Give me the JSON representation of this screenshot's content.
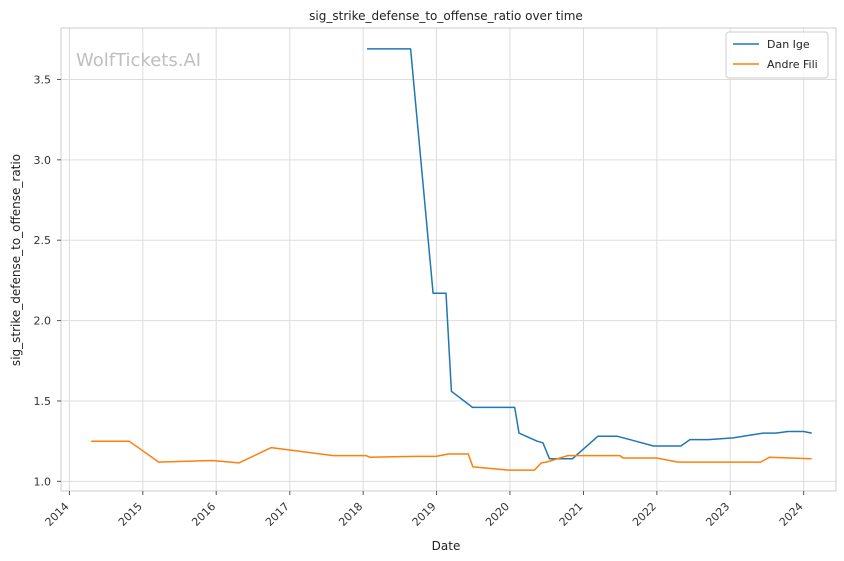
{
  "chart_data": {
    "type": "line",
    "title": "sig_strike_defense_to_offense_ratio over time",
    "xlabel": "Date",
    "ylabel": "sig_strike_defense_to_offense_ratio",
    "watermark": "WolfTickets.AI",
    "x_ticks": [
      "2014",
      "2015",
      "2016",
      "2017",
      "2018",
      "2019",
      "2020",
      "2021",
      "2022",
      "2023",
      "2024"
    ],
    "y_ticks": [
      "1.0",
      "1.5",
      "2.0",
      "2.5",
      "3.0",
      "3.5"
    ],
    "xlim": [
      "2013-11-20",
      "2024-06-10"
    ],
    "ylim": [
      0.94,
      3.82
    ],
    "grid": true,
    "legend_position": "top-right",
    "series": [
      {
        "name": "Dan Ige",
        "color": "#1f77b4",
        "points": [
          [
            "2018-01-20",
            3.69
          ],
          [
            "2018-08-25",
            3.69
          ],
          [
            "2018-12-15",
            2.17
          ],
          [
            "2019-02-17",
            2.17
          ],
          [
            "2019-03-16",
            1.56
          ],
          [
            "2019-06-29",
            1.46
          ],
          [
            "2020-01-25",
            1.46
          ],
          [
            "2020-02-15",
            1.3
          ],
          [
            "2020-05-15",
            1.25
          ],
          [
            "2020-06-13",
            1.24
          ],
          [
            "2020-07-16",
            1.14
          ],
          [
            "2020-11-07",
            1.14
          ],
          [
            "2021-03-13",
            1.28
          ],
          [
            "2021-06-19",
            1.28
          ],
          [
            "2021-12-15",
            1.22
          ],
          [
            "2022-04-30",
            1.22
          ],
          [
            "2022-06-15",
            1.26
          ],
          [
            "2022-09-15",
            1.26
          ],
          [
            "2023-01-15",
            1.27
          ],
          [
            "2023-06-15",
            1.3
          ],
          [
            "2023-08-15",
            1.3
          ],
          [
            "2023-10-15",
            1.31
          ],
          [
            "2024-01-01",
            1.31
          ],
          [
            "2024-02-10",
            1.3
          ]
        ]
      },
      {
        "name": "Andre Fili",
        "color": "#ff7f0e",
        "points": [
          [
            "2014-04-19",
            1.25
          ],
          [
            "2014-10-25",
            1.25
          ],
          [
            "2015-03-21",
            1.12
          ],
          [
            "2015-12-10",
            1.13
          ],
          [
            "2016-04-23",
            1.115
          ],
          [
            "2016-10-01",
            1.21
          ],
          [
            "2017-08-05",
            1.16
          ],
          [
            "2018-01-15",
            1.16
          ],
          [
            "2018-02-03",
            1.15
          ],
          [
            "2018-09-15",
            1.155
          ],
          [
            "2018-12-29",
            1.155
          ],
          [
            "2019-03-01",
            1.17
          ],
          [
            "2019-06-08",
            1.17
          ],
          [
            "2019-07-01",
            1.09
          ],
          [
            "2019-12-25",
            1.07
          ],
          [
            "2020-05-02",
            1.07
          ],
          [
            "2020-06-05",
            1.115
          ],
          [
            "2020-06-30",
            1.12
          ],
          [
            "2020-10-15",
            1.16
          ],
          [
            "2021-07-01",
            1.16
          ],
          [
            "2021-07-17",
            1.145
          ],
          [
            "2021-12-31",
            1.145
          ],
          [
            "2022-04-15",
            1.12
          ],
          [
            "2023-06-01",
            1.12
          ],
          [
            "2023-07-15",
            1.15
          ],
          [
            "2024-02-10",
            1.14
          ]
        ]
      }
    ]
  }
}
